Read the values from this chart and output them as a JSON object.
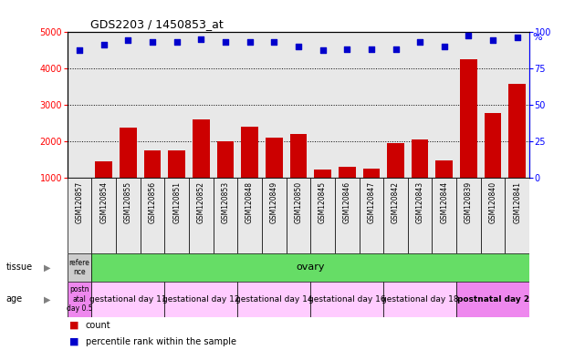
{
  "title": "GDS2203 / 1450853_at",
  "samples": [
    "GSM120857",
    "GSM120854",
    "GSM120855",
    "GSM120856",
    "GSM120851",
    "GSM120852",
    "GSM120853",
    "GSM120848",
    "GSM120849",
    "GSM120850",
    "GSM120845",
    "GSM120846",
    "GSM120847",
    "GSM120842",
    "GSM120843",
    "GSM120844",
    "GSM120839",
    "GSM120840",
    "GSM120841"
  ],
  "counts": [
    1000,
    1450,
    2380,
    1750,
    1750,
    2600,
    2000,
    2400,
    2100,
    2200,
    1230,
    1310,
    1260,
    1950,
    2050,
    1470,
    4250,
    2780,
    3580
  ],
  "percentiles": [
    87,
    91,
    94,
    93,
    93,
    95,
    93,
    93,
    93,
    90,
    87,
    88,
    88,
    88,
    93,
    90,
    97,
    94,
    96
  ],
  "ylim_left": [
    1000,
    5000
  ],
  "ylim_right": [
    0,
    100
  ],
  "yticks_left": [
    1000,
    2000,
    3000,
    4000,
    5000
  ],
  "yticks_right": [
    0,
    25,
    50,
    75,
    100
  ],
  "bar_color": "#cc0000",
  "dot_color": "#0000cc",
  "plot_bg": "#e8e8e8",
  "bg_color": "#ffffff",
  "reference_label": "refere\nnce",
  "reference_color": "#cccccc",
  "ovary_label": "ovary",
  "ovary_color": "#66dd66",
  "age_groups": [
    {
      "label": "postn\natal\nday 0.5",
      "color": "#ee88ee",
      "count": 1
    },
    {
      "label": "gestational day 11",
      "color": "#ffccff",
      "count": 3
    },
    {
      "label": "gestational day 12",
      "color": "#ffccff",
      "count": 3
    },
    {
      "label": "gestational day 14",
      "color": "#ffccff",
      "count": 3
    },
    {
      "label": "gestational day 16",
      "color": "#ffccff",
      "count": 3
    },
    {
      "label": "gestational day 18",
      "color": "#ffccff",
      "count": 3
    },
    {
      "label": "postnatal day 2",
      "color": "#ee88ee",
      "count": 3
    }
  ],
  "legend_count_label": "count",
  "legend_pct_label": "percentile rank within the sample"
}
